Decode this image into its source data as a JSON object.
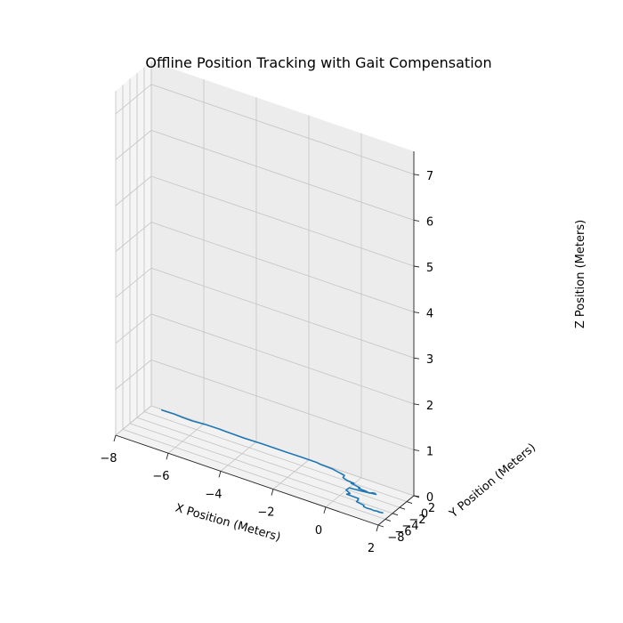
{
  "chart_data": {
    "type": "line3d",
    "title": "Offline Position Tracking with Gait Compensation",
    "xlabel": "X Position (Meters)",
    "ylabel": "Y Position (Meters)",
    "zlabel": "Z Position (Meters)",
    "xlim": [
      -8,
      2
    ],
    "ylim": [
      -8,
      2
    ],
    "zlim": [
      0,
      7.5
    ],
    "xticks": [
      -8,
      -6,
      -4,
      -2,
      0,
      2
    ],
    "yticks": [
      -8,
      -6,
      -4,
      -2,
      0,
      2
    ],
    "zticks": [
      0,
      1,
      2,
      3,
      4,
      5,
      6,
      7
    ],
    "grid": true,
    "line_color": "#1f77b4",
    "series": [
      {
        "values": [
          [
            1.72,
            -4.68,
            0.0
          ],
          [
            1.63,
            -4.76,
            0.0
          ],
          [
            1.55,
            -4.79,
            0.0
          ],
          [
            1.64,
            -4.71,
            0.0
          ],
          [
            1.59,
            -4.84,
            0.0
          ],
          [
            1.52,
            -4.72,
            0.0
          ],
          [
            1.41,
            -4.88,
            0.0
          ],
          [
            1.27,
            -4.79,
            0.0
          ],
          [
            1.16,
            -4.86,
            0.0
          ],
          [
            1.0,
            -4.75,
            0.0
          ],
          [
            0.97,
            -4.41,
            0.0
          ],
          [
            0.65,
            -4.15,
            0.0
          ],
          [
            0.64,
            -3.57,
            0.0
          ],
          [
            0.6,
            -3.39,
            0.0
          ],
          [
            0.6,
            -3.21,
            0.0
          ],
          [
            0.14,
            -3.15,
            0.0
          ],
          [
            0.21,
            -2.73,
            0.0
          ],
          [
            -0.01,
            -2.19,
            0.0
          ],
          [
            0.0,
            -1.41,
            0.0
          ],
          [
            0.48,
            -1.16,
            0.0
          ],
          [
            0.91,
            -0.78,
            0.0
          ],
          [
            0.86,
            -0.61,
            0.0
          ],
          [
            0.94,
            -0.8,
            0.0
          ],
          [
            0.86,
            -0.7,
            0.0
          ],
          [
            0.84,
            -0.88,
            0.0
          ],
          [
            0.81,
            -0.65,
            0.0
          ],
          [
            0.71,
            -1.03,
            0.0
          ],
          [
            0.55,
            -0.83,
            0.0
          ],
          [
            0.27,
            -0.78,
            0.0
          ],
          [
            0.29,
            -0.55,
            0.0
          ],
          [
            -0.1,
            -0.14,
            0.0
          ],
          [
            -0.01,
            0.06,
            0.0
          ],
          [
            -0.29,
            0.17,
            0.0
          ],
          [
            -0.5,
            0.53,
            0.0
          ],
          [
            -0.53,
            1.17,
            0.0
          ],
          [
            -0.65,
            1.3,
            0.0
          ],
          [
            -0.75,
            1.4,
            0.0
          ],
          [
            -1.08,
            1.75,
            0.0
          ],
          [
            -1.55,
            1.85,
            0.0
          ],
          [
            -1.71,
            2.01,
            0.0
          ],
          [
            -2.31,
            2.02,
            0.0
          ],
          [
            -2.87,
            1.97,
            0.0
          ],
          [
            -3.29,
            1.98,
            0.0
          ],
          [
            -3.81,
            1.98,
            0.0
          ],
          [
            -4.44,
            1.88,
            0.0
          ],
          [
            -5.07,
            1.93,
            0.0
          ],
          [
            -5.41,
            2.02,
            0.0
          ],
          [
            -5.95,
            1.96,
            0.0
          ],
          [
            -6.4,
            1.74,
            0.0
          ],
          [
            -6.76,
            1.77,
            0.0
          ],
          [
            -7.11,
            1.92,
            0.0
          ],
          [
            -7.43,
            1.88,
            0.0
          ],
          [
            -7.58,
            1.85,
            0.0
          ]
        ]
      }
    ]
  }
}
